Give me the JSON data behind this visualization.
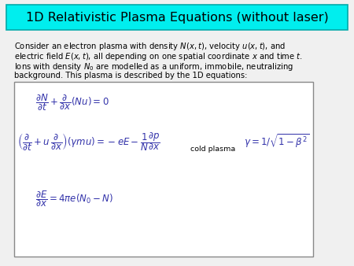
{
  "title": "1D Relativistic Plasma Equations (without laser)",
  "title_bg_color": "#00EEEE",
  "title_fontsize": 11.5,
  "body_fontsize": 7.2,
  "eq_fontsize": 8.5,
  "eq_color": "#3333aa",
  "bg_color": "#f0f0f0",
  "text_color": "#000000",
  "box_edge_color": "#888888",
  "title_edge_color": "#00aaaa"
}
